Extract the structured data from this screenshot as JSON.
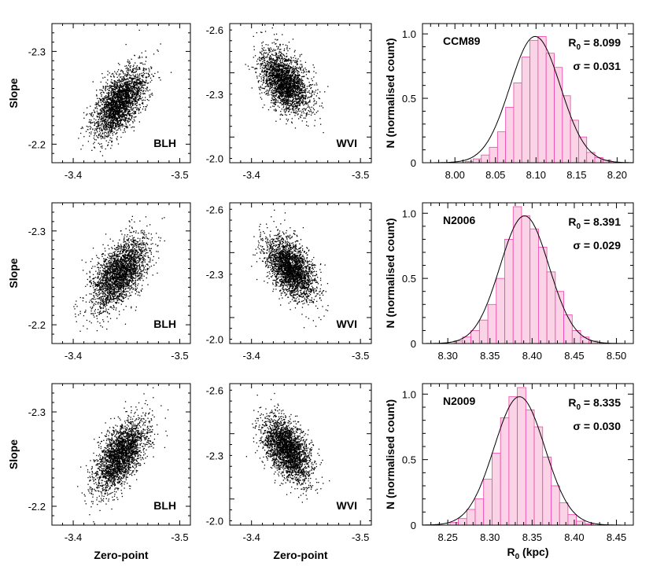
{
  "chart_data": [
    {
      "type": "scatter",
      "label": "BLH",
      "ylabel": "Slope",
      "xlabel": "",
      "xlim": [
        -3.38,
        -3.51
      ],
      "ylim": [
        -2.18,
        -2.33
      ],
      "xticks": [
        "-3.4",
        "-3.5"
      ],
      "yticks": [
        "-2.3",
        "-2.2"
      ],
      "center": [
        -3.443,
        -2.245
      ],
      "spread": [
        0.012,
        0.018
      ],
      "correlation": 0.55
    },
    {
      "type": "scatter",
      "label": "WVI",
      "ylabel": "",
      "xlabel": "",
      "xlim": [
        -3.38,
        -3.51
      ],
      "ylim": [
        -1.98,
        -2.63
      ],
      "xticks": [
        "-3.4",
        "-3.5"
      ],
      "yticks": [
        "-2.6",
        "-2.3",
        "-2.0"
      ],
      "center": [
        -3.43,
        -2.36
      ],
      "spread": [
        0.011,
        0.07
      ],
      "correlation": -0.45
    },
    {
      "type": "bar",
      "label": "CCM89",
      "ylabel": "N (normalised count)",
      "xlabel": "",
      "r0_text": "R0 = 8.099",
      "sigma_text": "σ = 0.031",
      "mean": 8.099,
      "sigma": 0.031,
      "xlim": [
        7.96,
        8.22
      ],
      "ylim": [
        0,
        1.08
      ],
      "xticks": [
        "8.00",
        "8.05",
        "8.10",
        "8.15",
        "8.20"
      ],
      "yticks": [
        "0",
        "0.5",
        "1.0"
      ],
      "bins": [
        8.0175,
        8.0275,
        8.0375,
        8.0475,
        8.0575,
        8.0675,
        8.0775,
        8.0875,
        8.0975,
        8.1075,
        8.1175,
        8.1275,
        8.1375,
        8.1475,
        8.1575,
        8.1675,
        8.1775,
        8.1875
      ],
      "values": [
        0.01,
        0.03,
        0.06,
        0.12,
        0.24,
        0.43,
        0.62,
        0.82,
        0.95,
        0.98,
        0.85,
        0.74,
        0.52,
        0.33,
        0.2,
        0.08,
        0.04,
        0.02
      ]
    },
    {
      "type": "scatter",
      "label": "BLH",
      "ylabel": "Slope",
      "xlabel": "",
      "xlim": [
        -3.38,
        -3.51
      ],
      "ylim": [
        -2.18,
        -2.33
      ],
      "xticks": [
        "-3.4",
        "-3.5"
      ],
      "yticks": [
        "-2.3",
        "-2.2"
      ],
      "center": [
        -3.443,
        -2.255
      ],
      "spread": [
        0.013,
        0.019
      ],
      "correlation": 0.58
    },
    {
      "type": "scatter",
      "label": "WVI",
      "ylabel": "",
      "xlabel": "",
      "xlim": [
        -3.38,
        -3.51
      ],
      "ylim": [
        -1.98,
        -2.63
      ],
      "xticks": [
        "-3.4",
        "-3.5"
      ],
      "yticks": [
        "-2.6",
        "-2.3",
        "-2.0"
      ],
      "center": [
        -3.435,
        -2.33
      ],
      "spread": [
        0.011,
        0.07
      ],
      "correlation": -0.5
    },
    {
      "type": "bar",
      "label": "N2006",
      "ylabel": "N (normalised count)",
      "xlabel": "",
      "r0_text": "R0 = 8.391",
      "sigma_text": "σ = 0.029",
      "mean": 8.391,
      "sigma": 0.029,
      "xlim": [
        8.27,
        8.52
      ],
      "ylim": [
        0,
        1.08
      ],
      "xticks": [
        "8.30",
        "8.35",
        "8.40",
        "8.45",
        "8.50"
      ],
      "yticks": [
        "0",
        "0.5",
        "1.0"
      ],
      "bins": [
        8.3125,
        8.3225,
        8.3325,
        8.3425,
        8.3525,
        8.3625,
        8.3725,
        8.3825,
        8.3925,
        8.4025,
        8.4125,
        8.4225,
        8.4325,
        8.4425,
        8.4525,
        8.4625,
        8.4725
      ],
      "values": [
        0.02,
        0.05,
        0.1,
        0.18,
        0.3,
        0.5,
        0.8,
        1.05,
        0.98,
        0.88,
        0.74,
        0.55,
        0.4,
        0.22,
        0.1,
        0.05,
        0.02
      ]
    },
    {
      "type": "scatter",
      "label": "BLH",
      "ylabel": "Slope",
      "xlabel": "Zero-point",
      "xlim": [
        -3.38,
        -3.51
      ],
      "ylim": [
        -2.18,
        -2.33
      ],
      "xticks": [
        "-3.4",
        "-3.5"
      ],
      "yticks": [
        "-2.3",
        "-2.2"
      ],
      "center": [
        -3.444,
        -2.255
      ],
      "spread": [
        0.012,
        0.019
      ],
      "correlation": 0.6
    },
    {
      "type": "scatter",
      "label": "WVI",
      "ylabel": "",
      "xlabel": "Zero-point",
      "xlim": [
        -3.38,
        -3.51
      ],
      "ylim": [
        -1.98,
        -2.63
      ],
      "xticks": [
        "-3.4",
        "-3.5"
      ],
      "yticks": [
        "-2.6",
        "-2.3",
        "-2.0"
      ],
      "center": [
        -3.432,
        -2.33
      ],
      "spread": [
        0.011,
        0.07
      ],
      "correlation": -0.48
    },
    {
      "type": "bar",
      "label": "N2009",
      "ylabel": "N (normalised count)",
      "xlabel": "R0 (kpc)",
      "r0_text": "R0 = 8.335",
      "sigma_text": "σ = 0.030",
      "mean": 8.335,
      "sigma": 0.03,
      "xlim": [
        8.22,
        8.47
      ],
      "ylim": [
        0,
        1.08
      ],
      "xticks": [
        "8.25",
        "8.30",
        "8.35",
        "8.40",
        "8.45"
      ],
      "yticks": [
        "0",
        "0.5",
        "1.0"
      ],
      "bins": [
        8.2575,
        8.2675,
        8.2775,
        8.2875,
        8.2975,
        8.3075,
        8.3175,
        8.3275,
        8.3375,
        8.3475,
        8.3575,
        8.3675,
        8.3775,
        8.3875,
        8.3975,
        8.4075,
        8.4175
      ],
      "values": [
        0.02,
        0.05,
        0.12,
        0.2,
        0.35,
        0.55,
        0.82,
        0.98,
        1.05,
        0.88,
        0.75,
        0.52,
        0.3,
        0.17,
        0.08,
        0.03,
        0.01
      ]
    }
  ]
}
